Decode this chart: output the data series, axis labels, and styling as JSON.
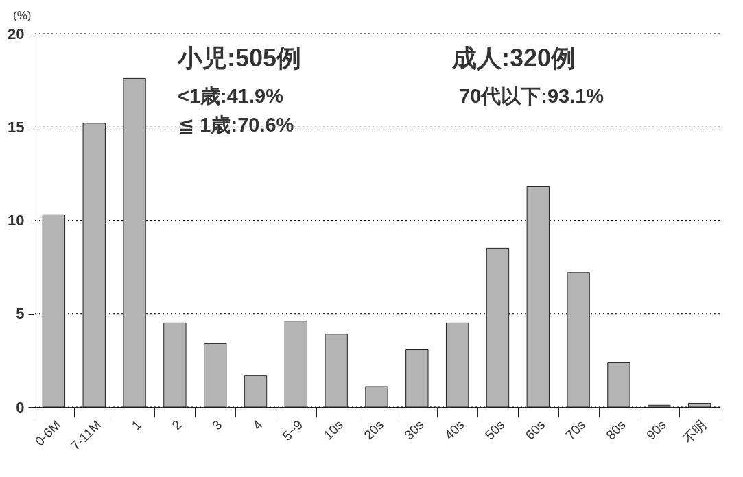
{
  "chart_data": {
    "type": "bar",
    "ylabel": "(%)",
    "categories": [
      "0-6M",
      "7-11M",
      "1",
      "2",
      "3",
      "4",
      "5~9",
      "10s",
      "20s",
      "30s",
      "40s",
      "50s",
      "60s",
      "70s",
      "80s",
      "90s",
      "不明"
    ],
    "values": [
      10.3,
      15.2,
      17.6,
      4.5,
      3.4,
      1.7,
      4.6,
      3.9,
      1.1,
      3.1,
      4.5,
      8.5,
      11.8,
      7.2,
      2.4,
      0.1,
      0.2
    ],
    "color": "#b4b4b4",
    "ylim": [
      0,
      20
    ],
    "yticks": [
      0,
      5,
      10,
      15,
      20
    ],
    "grid": "y",
    "annotations": [
      "小児:505例",
      "<1歳:41.9%",
      "≦ 1歳:70.6%",
      "成人:320例",
      "70代以下:93.1%"
    ]
  }
}
